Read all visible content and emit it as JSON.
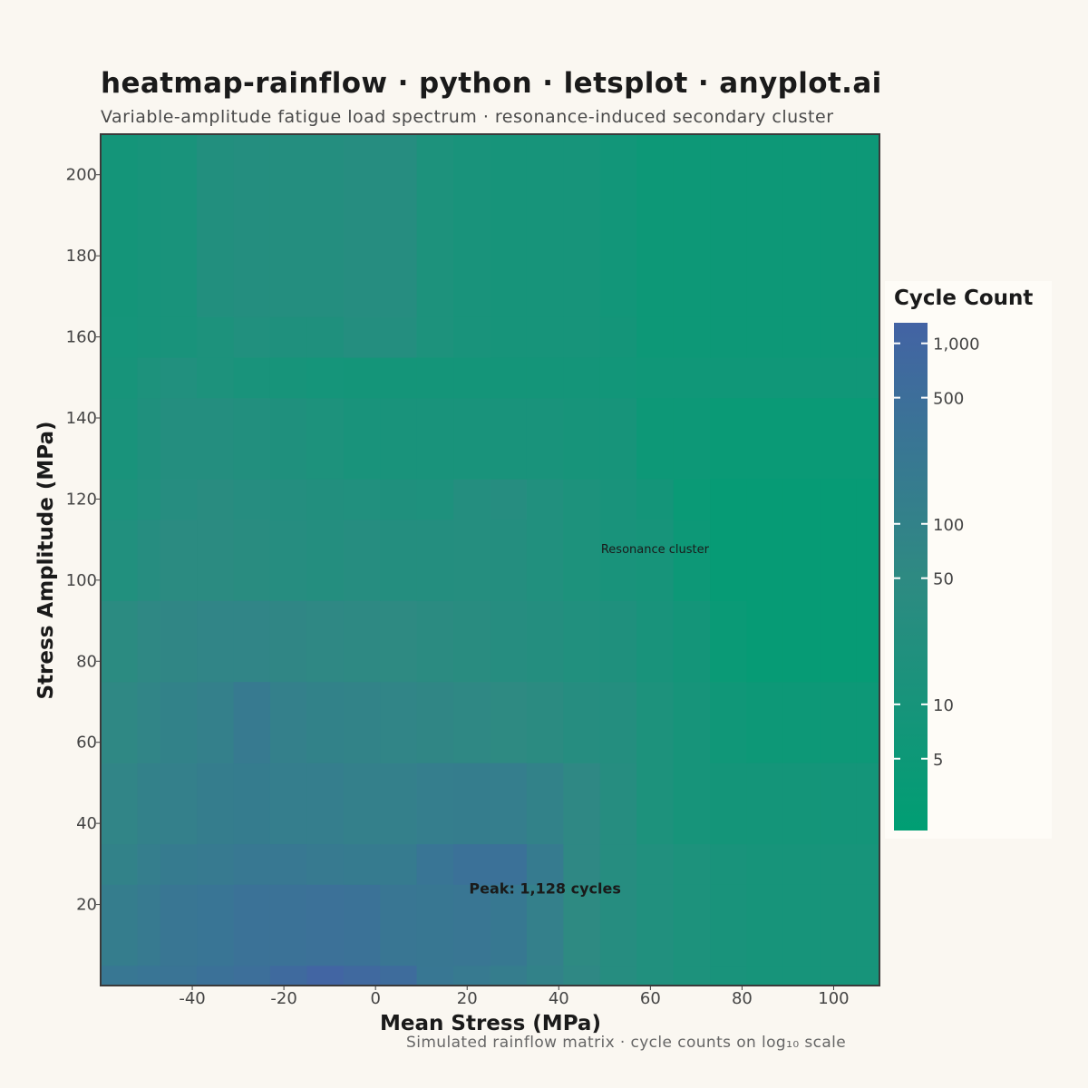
{
  "title": "heatmap-rainflow · python · letsplot · anyplot.ai",
  "subtitle": "Variable-amplitude fatigue load spectrum · resonance-induced secondary cluster",
  "caption": "Simulated rainflow matrix · cycle counts on log₁₀ scale",
  "colors": {
    "low": "#009e73",
    "mid": "#2e8a82",
    "high": "#4363a4",
    "background": "#faf7f1",
    "panel": "#fefcf7"
  },
  "chart_data": {
    "type": "heatmap",
    "xlabel": "Mean Stress (MPa)",
    "ylabel": "Stress Amplitude (MPa)",
    "xlim": [
      -60,
      110
    ],
    "ylim": [
      0,
      210
    ],
    "x_ticks": [
      -40,
      -20,
      0,
      20,
      40,
      60,
      80,
      100
    ],
    "x_tick_labels": [
      "-40",
      "-20",
      "0",
      "20",
      "40",
      "60",
      "80",
      "100"
    ],
    "y_ticks": [
      20,
      40,
      60,
      80,
      100,
      120,
      140,
      160,
      180,
      200
    ],
    "y_tick_labels": [
      "20",
      "40",
      "60",
      "80",
      "100",
      "120",
      "140",
      "160",
      "180",
      "200"
    ],
    "scale": "log10",
    "legend": {
      "title": "Cycle Count",
      "position": "right",
      "ticks": [
        5,
        10,
        50,
        100,
        500,
        1000
      ],
      "tick_labels": [
        "5",
        "10",
        "50",
        "100",
        "500",
        "1,000"
      ],
      "range": [
        2,
        1300
      ]
    },
    "x_bin_edges": [
      -60,
      -52,
      -47,
      -39,
      -31,
      -23,
      -15,
      -7,
      1,
      9,
      17,
      25,
      33,
      41,
      49,
      57,
      65,
      73,
      81,
      89,
      97,
      105,
      110
    ],
    "y_bin_edges": [
      0,
      5,
      25,
      35,
      55,
      75,
      95,
      115,
      125,
      145,
      155,
      165,
      210
    ],
    "row_values": [
      [
        250,
        300,
        320,
        400,
        500,
        700,
        1128,
        800,
        600,
        250,
        200,
        150,
        100,
        60,
        30,
        20,
        15,
        12,
        10,
        10,
        10,
        10
      ],
      [
        150,
        200,
        260,
        300,
        360,
        360,
        420,
        360,
        260,
        240,
        260,
        220,
        120,
        50,
        30,
        20,
        15,
        12,
        10,
        10,
        10,
        10
      ],
      [
        100,
        140,
        180,
        200,
        230,
        230,
        200,
        180,
        180,
        300,
        400,
        400,
        180,
        60,
        30,
        20,
        15,
        12,
        10,
        10,
        10,
        10
      ],
      [
        80,
        110,
        120,
        150,
        160,
        140,
        140,
        120,
        120,
        140,
        150,
        140,
        100,
        60,
        30,
        15,
        10,
        8,
        8,
        8,
        8,
        8
      ],
      [
        60,
        80,
        100,
        120,
        200,
        120,
        100,
        90,
        80,
        70,
        60,
        50,
        40,
        30,
        25,
        15,
        10,
        6,
        5,
        5,
        5,
        5
      ],
      [
        40,
        60,
        70,
        80,
        80,
        70,
        60,
        55,
        50,
        40,
        35,
        30,
        25,
        20,
        18,
        12,
        8,
        4,
        3,
        3,
        3,
        3
      ],
      [
        20,
        30,
        40,
        40,
        35,
        30,
        25,
        30,
        25,
        25,
        28,
        25,
        20,
        15,
        12,
        10,
        5,
        3,
        3,
        3,
        3,
        3
      ],
      [
        15,
        20,
        30,
        35,
        30,
        25,
        22,
        20,
        18,
        17,
        25,
        30,
        20,
        15,
        12,
        8,
        4,
        3,
        3,
        3,
        3,
        3
      ],
      [
        12,
        18,
        25,
        25,
        22,
        18,
        15,
        12,
        12,
        12,
        12,
        12,
        12,
        10,
        10,
        5,
        5,
        4,
        4,
        4,
        4,
        4
      ],
      [
        10,
        15,
        20,
        15,
        12,
        10,
        9,
        8,
        8,
        8,
        8,
        8,
        8,
        8,
        7,
        6,
        6,
        6,
        6,
        6,
        6,
        6
      ],
      [
        9,
        10,
        12,
        15,
        20,
        18,
        18,
        25,
        25,
        15,
        12,
        10,
        10,
        10,
        8,
        5,
        5,
        5,
        5,
        5,
        5,
        5
      ],
      [
        8,
        10,
        12,
        22,
        25,
        25,
        25,
        30,
        30,
        15,
        12,
        10,
        10,
        10,
        7,
        5,
        5,
        5,
        5,
        5,
        5,
        5
      ]
    ],
    "annotations": [
      {
        "text": "Peak: 1,128 cycles",
        "x": 37,
        "y": 24,
        "bold": true
      },
      {
        "text": "Resonance cluster",
        "x": 61,
        "y": 108,
        "bold": false
      }
    ]
  }
}
